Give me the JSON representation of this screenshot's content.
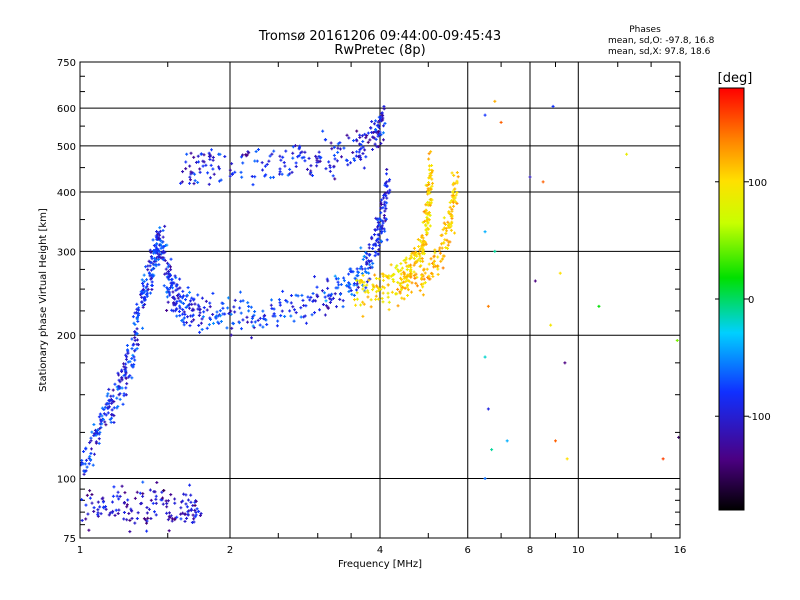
{
  "title": "Tromsø 20161206 09:44:00-09:45:43",
  "subtitle": "RwPretec (8p)",
  "phase_box": {
    "heading": "Phases",
    "line1": "mean, sd,O: -97.8, 16.8",
    "line2": "mean, sd,X:  97.8, 18.6"
  },
  "chart_data": {
    "type": "scatter",
    "xlabel": "Frequency [MHz]",
    "ylabel": "Stationary phase Virtual Height [km]",
    "x_scale": "log",
    "y_scale": "log",
    "xlim": [
      1,
      16
    ],
    "ylim": [
      75,
      750
    ],
    "x_ticks": [
      1,
      2,
      4,
      6,
      8,
      10,
      16
    ],
    "x_tick_labels": [
      "1",
      "2",
      "4",
      "6",
      "8",
      "10",
      "16"
    ],
    "y_ticks": [
      75,
      100,
      200,
      300,
      400,
      500,
      600,
      750
    ],
    "y_tick_labels": [
      "75",
      "100",
      "200",
      "300",
      "400",
      "500",
      "600",
      "750"
    ],
    "grid": true,
    "colorbar": {
      "label": "[deg]",
      "range": [
        -180,
        180
      ],
      "ticks": [
        100,
        0,
        -100
      ],
      "tick_labels": [
        "100",
        "0",
        "-100"
      ]
    },
    "colors": {
      "O_mode": "#1a3fd9",
      "O_mode_low": "#3a1aa8",
      "X_mode": "#ffd400",
      "X_mode_hot": "#ff7a00"
    },
    "traces": [
      {
        "mode": "O",
        "phase": -120,
        "points": [
          [
            1.0,
            88
          ],
          [
            1.2,
            88
          ],
          [
            1.4,
            88
          ],
          [
            1.6,
            87
          ],
          [
            1.75,
            87
          ]
        ]
      },
      {
        "mode": "O",
        "phase": -100,
        "points": [
          [
            1.0,
            105
          ],
          [
            1.08,
            120
          ],
          [
            1.15,
            140
          ],
          [
            1.22,
            160
          ],
          [
            1.28,
            190
          ],
          [
            1.33,
            230
          ],
          [
            1.38,
            270
          ],
          [
            1.42,
            300
          ],
          [
            1.45,
            320
          ],
          [
            1.5,
            260
          ],
          [
            1.55,
            240
          ],
          [
            1.62,
            225
          ],
          [
            1.8,
            222
          ],
          [
            2.1,
            222
          ],
          [
            2.5,
            226
          ],
          [
            3.0,
            238
          ],
          [
            3.4,
            252
          ],
          [
            3.7,
            272
          ],
          [
            3.95,
            310
          ],
          [
            4.05,
            350
          ],
          [
            4.15,
            430
          ]
        ]
      },
      {
        "mode": "O",
        "phase": -110,
        "points": [
          [
            1.6,
            450
          ],
          [
            1.9,
            455
          ],
          [
            2.5,
            465
          ],
          [
            3.0,
            475
          ],
          [
            3.5,
            495
          ],
          [
            3.9,
            520
          ],
          [
            4.1,
            560
          ]
        ]
      },
      {
        "mode": "X",
        "phase": 100,
        "points": [
          [
            3.6,
            245
          ],
          [
            4.0,
            250
          ],
          [
            4.4,
            262
          ],
          [
            4.7,
            285
          ],
          [
            4.9,
            320
          ],
          [
            5.0,
            380
          ],
          [
            5.05,
            460
          ]
        ]
      },
      {
        "mode": "X",
        "phase": 110,
        "points": [
          [
            4.4,
            250
          ],
          [
            4.9,
            268
          ],
          [
            5.3,
            300
          ],
          [
            5.55,
            360
          ],
          [
            5.7,
            420
          ]
        ]
      }
    ]
  }
}
